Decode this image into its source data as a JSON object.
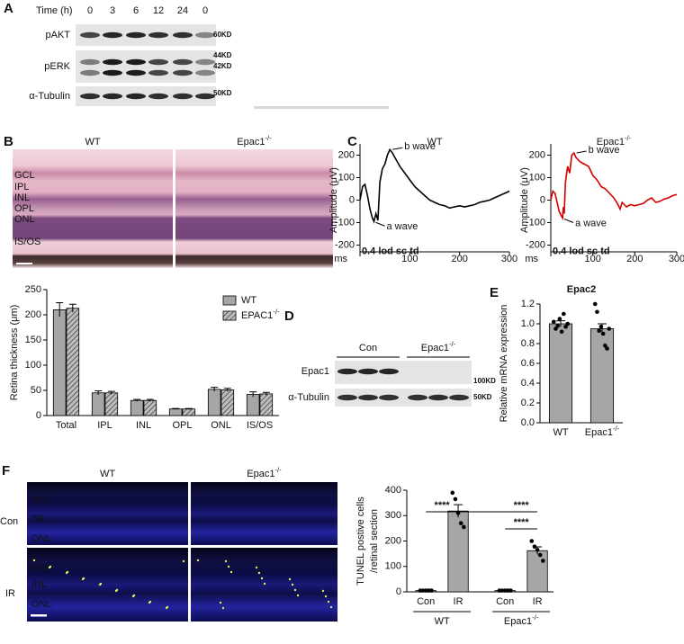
{
  "panel_a": {
    "label": "A",
    "time_label": "Time (h)",
    "timepoints": [
      "0",
      "3",
      "6",
      "12",
      "24",
      "0"
    ],
    "rows": [
      "pAKT",
      "pERK",
      "α-Tubulin"
    ],
    "sizes": [
      "60KD",
      "44KD",
      "42KD",
      "50KD"
    ]
  },
  "panel_b": {
    "label": "B",
    "images": [
      "WT",
      "Epac1-/-"
    ],
    "layers": [
      "GCL",
      "IPL",
      "INL",
      "OPL",
      "ONL",
      "IS/OS"
    ]
  },
  "panel_c": {
    "label": "C"
  },
  "panel_d": {
    "label": "D",
    "groups": [
      "Con",
      "Epac1-/-"
    ],
    "rows": [
      "Epac1",
      "α-Tubulin"
    ],
    "sizes": [
      "100KD",
      "50KD"
    ]
  },
  "panel_e": {
    "label": "E"
  },
  "panel_f": {
    "label": "F",
    "columns": [
      "WT",
      "Epac1-/-"
    ],
    "rows": [
      "Con",
      "IR"
    ],
    "layers": [
      [
        "GCL",
        "INL",
        "ONL"
      ],
      [
        "GCL",
        "INL",
        "ONL"
      ]
    ]
  },
  "chart_data": [
    {
      "type": "bar",
      "ylabel": "Retina thickness (μm)",
      "categories": [
        "Total",
        "IPL",
        "INL",
        "OPL",
        "ONL",
        "IS/OS"
      ],
      "series": [
        {
          "name": "WT",
          "color": "#a6a6a6",
          "values": [
            210,
            45,
            30,
            13,
            52,
            42
          ],
          "errors": [
            14,
            4,
            2,
            1,
            4,
            5
          ]
        },
        {
          "name": "EPAC1-/-",
          "color": "#a6a6a6",
          "hatch": true,
          "values": [
            213,
            45,
            30,
            13,
            51,
            43
          ],
          "errors": [
            8,
            3,
            2,
            1,
            3,
            3
          ]
        }
      ],
      "ylim": [
        0,
        250
      ],
      "yticks": [
        0,
        50,
        100,
        150,
        200,
        250
      ]
    },
    {
      "type": "line",
      "title": "WT",
      "xlabel": "ms",
      "ylabel": "Amplitude (μV)",
      "x": [
        0,
        5,
        10,
        15,
        20,
        25,
        28,
        32,
        36,
        40,
        45,
        50,
        55,
        60,
        65,
        70,
        80,
        90,
        100,
        110,
        120,
        130,
        140,
        150,
        160,
        170,
        180,
        190,
        200,
        210,
        220,
        230,
        240,
        250,
        260,
        270,
        280,
        290,
        300
      ],
      "series": [
        {
          "color": "#000000",
          "values": [
            0,
            60,
            70,
            20,
            -40,
            -80,
            -95,
            -60,
            -90,
            80,
            140,
            160,
            200,
            225,
            210,
            190,
            150,
            120,
            90,
            60,
            40,
            20,
            0,
            -10,
            -20,
            -25,
            -35,
            -30,
            -25,
            -30,
            -25,
            -20,
            -10,
            -5,
            0,
            10,
            20,
            30,
            40
          ]
        }
      ],
      "annotations": [
        "b wave",
        "a wave",
        "0.4 lod sc td"
      ],
      "xlim": [
        0,
        300
      ],
      "xticks": [
        100,
        200,
        300
      ],
      "ylim": [
        -250,
        250
      ],
      "yticks": [
        -200,
        -100,
        0,
        100,
        200
      ]
    },
    {
      "type": "line",
      "title": "Epac1-/-",
      "xlabel": "ms",
      "ylabel": "Amplitude (μV)",
      "x": [
        0,
        5,
        10,
        15,
        20,
        25,
        28,
        30,
        32,
        35,
        40,
        45,
        50,
        55,
        60,
        70,
        80,
        90,
        100,
        110,
        120,
        130,
        140,
        150,
        160,
        165,
        170,
        180,
        190,
        200,
        210,
        220,
        230,
        240,
        250,
        260,
        270,
        280,
        290,
        300
      ],
      "series": [
        {
          "color": "#d40000",
          "values": [
            0,
            40,
            30,
            -10,
            -50,
            -70,
            -80,
            -30,
            -60,
            80,
            150,
            120,
            200,
            210,
            190,
            170,
            160,
            150,
            110,
            90,
            60,
            50,
            30,
            10,
            -20,
            -40,
            -10,
            -30,
            -20,
            -25,
            -20,
            -15,
            0,
            10,
            -10,
            -5,
            5,
            10,
            20,
            25
          ]
        }
      ],
      "annotations": [
        "b wave",
        "a wave",
        "0.4 lod sc td"
      ],
      "xlim": [
        0,
        300
      ],
      "xticks": [
        100,
        200,
        300
      ],
      "ylim": [
        -250,
        250
      ],
      "yticks": [
        -200,
        -100,
        0,
        100,
        200
      ]
    },
    {
      "type": "bar",
      "title": "Epac2",
      "ylabel": "Relative mRNA expression",
      "categories": [
        "WT",
        "Epac1-/-"
      ],
      "color": "#a6a6a6",
      "values": [
        1.0,
        0.95
      ],
      "errors": [
        0.03,
        0.05
      ],
      "points": [
        [
          1.02,
          0.95,
          0.98,
          1.05,
          0.92,
          1.1,
          0.97,
          1.0
        ],
        [
          1.2,
          1.12,
          0.93,
          0.97,
          0.9,
          0.78,
          0.75,
          0.95
        ]
      ],
      "ylim": [
        0,
        1.2
      ],
      "yticks": [
        {
          "value": 0,
          "label": "0.0"
        },
        0.2,
        0.4,
        0.6,
        0.8,
        {
          "value": 1,
          "label": "1.0"
        },
        1.2
      ]
    },
    {
      "type": "bar",
      "ylabel": [
        "TUNEL postive cells",
        "/retinal section"
      ],
      "categories": [
        "Con",
        "IR",
        "Con",
        "IR"
      ],
      "groups": [
        "WT",
        "Epac1-/-"
      ],
      "color": "#a6a6a6",
      "values": [
        5,
        318,
        5,
        162
      ],
      "errors": [
        0,
        25,
        0,
        15
      ],
      "points": [
        [
          5,
          5,
          5,
          5,
          5
        ],
        [
          390,
          365,
          310,
          270,
          255
        ],
        [
          5,
          5,
          5,
          5,
          5
        ],
        [
          200,
          178,
          165,
          145,
          122
        ]
      ],
      "significance": [
        "****",
        "****",
        "****"
      ],
      "ylim": [
        0,
        400
      ],
      "yticks": [
        0,
        100,
        200,
        300,
        400
      ]
    }
  ]
}
